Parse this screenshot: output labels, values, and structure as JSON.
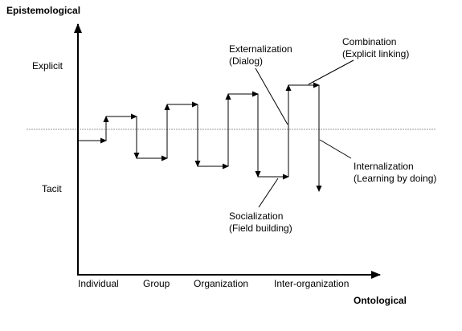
{
  "axes": {
    "y_title": "Epistemological",
    "x_title": "Ontological",
    "y_levels": {
      "top": "Explicit",
      "bottom": "Tacit"
    },
    "x_levels": [
      "Individual",
      "Group",
      "Organization",
      "Inter-organization"
    ]
  },
  "annotations": {
    "externalization": {
      "title": "Externalization",
      "subtitle": "(Dialog)"
    },
    "combination": {
      "title": "Combination",
      "subtitle": "(Explicit linking)"
    },
    "internalization": {
      "title": "Internalization",
      "subtitle": "(Learning by doing)"
    },
    "socialization": {
      "title": "Socialization",
      "subtitle": "(Field building)"
    }
  },
  "colors": {
    "line": "#000000",
    "divider": "#999999"
  }
}
